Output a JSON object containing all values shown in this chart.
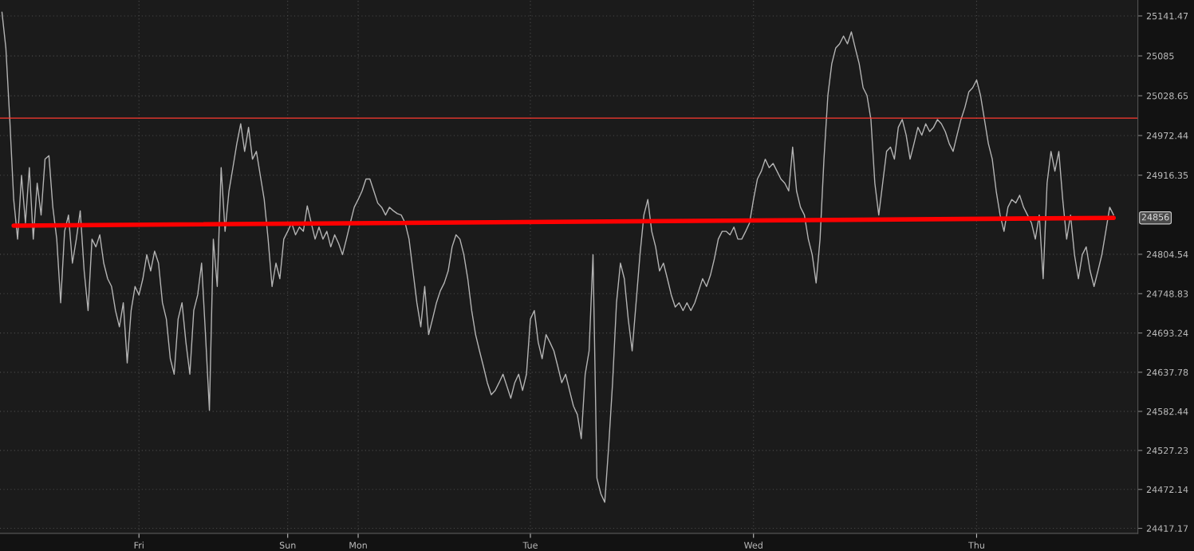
{
  "chart_data": {
    "type": "line",
    "categories": [
      null,
      null,
      null,
      null,
      null,
      null,
      null,
      null,
      null,
      null,
      null,
      null,
      null,
      null,
      null,
      null,
      null,
      null,
      null,
      null,
      null,
      null,
      null,
      null,
      null,
      null,
      null,
      null,
      null,
      null,
      null,
      null,
      null,
      null,
      null,
      "Fri",
      null,
      null,
      null,
      null,
      null,
      null,
      null,
      null,
      null,
      null,
      null,
      null,
      null,
      null,
      null,
      null,
      null,
      null,
      null,
      null,
      null,
      null,
      null,
      null,
      null,
      null,
      null,
      null,
      null,
      null,
      null,
      null,
      null,
      null,
      null,
      null,
      null,
      "Sun",
      null,
      null,
      null,
      null,
      null,
      null,
      null,
      null,
      null,
      null,
      null,
      null,
      null,
      null,
      null,
      null,
      null,
      "Mon",
      null,
      null,
      null,
      null,
      null,
      null,
      null,
      null,
      null,
      null,
      null,
      null,
      null,
      null,
      null,
      null,
      null,
      null,
      null,
      null,
      null,
      null,
      null,
      null,
      null,
      null,
      null,
      null,
      null,
      null,
      null,
      null,
      null,
      null,
      null,
      null,
      null,
      null,
      null,
      null,
      null,
      null,
      null,
      "Tue",
      null,
      null,
      null,
      null,
      null,
      null,
      null,
      null,
      null,
      null,
      null,
      null,
      null,
      null,
      null,
      null,
      null,
      null,
      null,
      null,
      null,
      null,
      null,
      null,
      null,
      null,
      null,
      null,
      null,
      null,
      null,
      null,
      null,
      null,
      null,
      null,
      null,
      null,
      null,
      null,
      null,
      null,
      null,
      null,
      null,
      null,
      null,
      null,
      null,
      null,
      null,
      null,
      null,
      null,
      null,
      null,
      "Wed",
      null,
      null,
      null,
      null,
      null,
      null,
      null,
      null,
      null,
      null,
      null,
      null,
      null,
      null,
      null,
      null,
      null,
      null,
      null,
      null,
      null,
      null,
      null,
      null,
      null,
      null,
      null,
      null,
      null,
      null,
      null,
      null,
      null,
      null,
      null,
      null,
      null,
      null,
      null,
      null,
      null,
      null,
      null,
      null,
      null,
      null,
      null,
      null,
      null,
      null,
      null,
      null,
      null,
      null,
      null,
      null,
      "Thu",
      null,
      null,
      null,
      null,
      null,
      null,
      null,
      null,
      null,
      null,
      null,
      null,
      null,
      null,
      null,
      null,
      null,
      null,
      null,
      null,
      null,
      null,
      null,
      null,
      null,
      null,
      null,
      null,
      null,
      null,
      null,
      null,
      null,
      null,
      null
    ],
    "series": [
      {
        "color": "#b4b4b4",
        "values": [
          25147,
          25096,
          24995,
          24882,
          24826,
          24916,
          24849,
          24927,
          24826,
          24905,
          24860,
          24939,
          24944,
          24871,
          24826,
          24736,
          24837,
          24860,
          24792,
          24826,
          24866,
          24781,
          24725,
          24826,
          24815,
          24832,
          24792,
          24770,
          24759,
          24725,
          24702,
          24736,
          24651,
          24725,
          24759,
          24747,
          24770,
          24804,
          24781,
          24809,
          24792,
          24736,
          24713,
          24657,
          24635,
          24713,
          24736,
          24680,
          24635,
          24725,
          24747,
          24792,
          24691,
          24584,
          24826,
          24759,
          24927,
          24837,
          24894,
          24927,
          24961,
          24989,
          24950,
          24984,
          24939,
          24950,
          24916,
          24882,
          24826,
          24759,
          24792,
          24770,
          24826,
          24837,
          24849,
          24832,
          24843,
          24837,
          24873,
          24849,
          24826,
          24843,
          24826,
          24837,
          24815,
          24832,
          24820,
          24804,
          24826,
          24849,
          24871,
          24882,
          24894,
          24911,
          24911,
          24894,
          24877,
          24871,
          24860,
          24871,
          24866,
          24862,
          24860,
          24849,
          24826,
          24781,
          24736,
          24702,
          24759,
          24691,
          24713,
          24736,
          24753,
          24764,
          24781,
          24815,
          24832,
          24826,
          24804,
          24770,
          24725,
          24691,
          24668,
          24646,
          24623,
          24606,
          24612,
          24623,
          24635,
          24618,
          24601,
          24623,
          24635,
          24612,
          24635,
          24713,
          24725,
          24680,
          24657,
          24691,
          24680,
          24668,
          24646,
          24623,
          24635,
          24612,
          24590,
          24578,
          24544,
          24635,
          24668,
          24804,
          24488,
          24466,
          24454,
          24533,
          24623,
          24736,
          24792,
          24770,
          24713,
          24668,
          24736,
          24804,
          24860,
          24882,
          24837,
          24815,
          24781,
          24792,
          24770,
          24747,
          24730,
          24736,
          24725,
          24736,
          24725,
          24736,
          24753,
          24770,
          24759,
          24775,
          24798,
          24826,
          24837,
          24837,
          24832,
          24843,
          24826,
          24826,
          24837,
          24849,
          24882,
          24911,
          24922,
          24939,
          24927,
          24933,
          24922,
          24911,
          24905,
          24894,
          24956,
          24894,
          24871,
          24860,
          24826,
          24804,
          24764,
          24826,
          24939,
          25029,
          25074,
          25096,
          25102,
          25113,
          25102,
          25119,
          25096,
          25074,
          25040,
          25029,
          24995,
          24905,
          24860,
          24905,
          24950,
          24956,
          24939,
          24984,
          24995,
          24973,
          24939,
          24961,
          24984,
          24973,
          24989,
          24978,
          24984,
          24995,
          24989,
          24978,
          24961,
          24950,
          24973,
          24995,
          25012,
          25034,
          25040,
          25051,
          25029,
          24995,
          24961,
          24939,
          24894,
          24860,
          24837,
          24871,
          24882,
          24877,
          24888,
          24871,
          24860,
          24849,
          24826,
          24860,
          24770,
          24905,
          24950,
          24922,
          24950,
          24882,
          24826,
          24860,
          24804,
          24770,
          24804,
          24815,
          24781,
          24759,
          24781,
          24804,
          24837,
          24871,
          24860
        ]
      },
      {
        "type": "line",
        "color": "#ff0000",
        "values": [
          null,
          null,
          null,
          24845,
          null,
          null,
          null,
          null,
          null,
          null,
          null,
          null,
          null,
          null,
          null,
          null,
          null,
          null,
          null,
          null,
          null,
          null,
          null,
          null,
          null,
          null,
          null,
          null,
          null,
          null,
          null,
          null,
          null,
          null,
          null,
          null,
          null,
          null,
          null,
          null,
          null,
          null,
          null,
          null,
          null,
          null,
          null,
          null,
          null,
          null,
          null,
          null,
          null,
          null,
          null,
          null,
          null,
          null,
          null,
          null,
          null,
          null,
          null,
          null,
          null,
          null,
          null,
          null,
          null,
          null,
          null,
          null,
          null,
          null,
          null,
          null,
          null,
          null,
          null,
          null,
          null,
          null,
          null,
          null,
          null,
          null,
          null,
          null,
          null,
          null,
          null,
          null,
          null,
          null,
          null,
          null,
          null,
          null,
          null,
          null,
          null,
          null,
          null,
          null,
          null,
          null,
          null,
          null,
          null,
          null,
          null,
          null,
          null,
          null,
          null,
          null,
          null,
          null,
          null,
          null,
          null,
          null,
          null,
          null,
          null,
          null,
          null,
          null,
          null,
          null,
          null,
          null,
          null,
          null,
          null,
          null,
          null,
          null,
          null,
          null,
          null,
          null,
          null,
          null,
          null,
          null,
          null,
          null,
          null,
          null,
          null,
          null,
          null,
          null,
          null,
          null,
          null,
          null,
          null,
          null,
          null,
          null,
          null,
          null,
          null,
          null,
          null,
          null,
          null,
          null,
          null,
          null,
          null,
          null,
          null,
          null,
          null,
          null,
          null,
          null,
          null,
          null,
          null,
          null,
          null,
          null,
          null,
          null,
          null,
          null,
          null,
          null,
          null,
          null,
          null,
          null,
          null,
          null,
          null,
          null,
          null,
          null,
          null,
          null,
          null,
          null,
          null,
          null,
          null,
          null,
          null,
          null,
          null,
          null,
          null,
          null,
          null,
          null,
          null,
          null,
          null,
          null,
          null,
          null,
          null,
          null,
          null,
          null,
          null,
          null,
          null,
          null,
          null,
          null,
          null,
          null,
          null,
          null,
          null,
          null,
          null,
          null,
          null,
          null,
          null,
          null,
          null,
          null,
          null,
          null,
          null,
          null,
          null,
          null,
          null,
          null,
          null,
          null,
          null,
          null,
          null,
          null,
          null,
          null,
          null,
          null,
          null,
          null,
          null,
          null,
          null,
          null,
          null,
          null,
          null,
          null,
          null,
          null,
          null,
          null,
          null,
          null,
          null,
          null,
          24856
        ]
      }
    ],
    "ylim": [
      24410,
      25164
    ],
    "yticks": [
      24417.17,
      24472.14,
      24527.23,
      24582.44,
      24637.78,
      24693.24,
      24748.83,
      24804.54,
      24916.35,
      24972.44,
      25028.65,
      25085,
      25141.47
    ],
    "ref_lines": [
      {
        "axis": "y",
        "value": 24997,
        "color": "#ff3b30"
      }
    ],
    "annotations": [
      "24856"
    ],
    "grid": true,
    "legend": false,
    "marker": "none",
    "line_style": "solid"
  }
}
